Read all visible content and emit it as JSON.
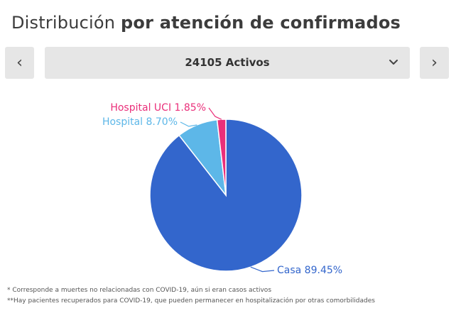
{
  "header": {
    "title_light": "Distribución",
    "title_bold": "por atención de confirmados"
  },
  "nav": {
    "prev_label": "‹",
    "next_label": "›",
    "selected": "24105 Activos",
    "dropdown_icon": "chevron-down-icon"
  },
  "chart_data": {
    "type": "pie",
    "title": "",
    "slices": [
      {
        "label": "Casa",
        "value": 89.45,
        "display": "Casa 89.45%",
        "color": "#3366cc"
      },
      {
        "label": "Hospital",
        "value": 8.7,
        "display": "Hospital 8.70%",
        "color": "#5db7e8"
      },
      {
        "label": "Hospital UCI",
        "value": 1.85,
        "display": "Hospital UCI 1.85%",
        "color": "#ea2f7a"
      }
    ],
    "start": "12 o'clock, clockwise"
  },
  "footnotes": [
    "* Corresponde a muertes no relacionadas con COVID-19, aún si eran casos activos",
    "**Hay pacientes recuperados para COVID-19, que pueden permanecer en hospitalización por otras comorbilidades"
  ]
}
